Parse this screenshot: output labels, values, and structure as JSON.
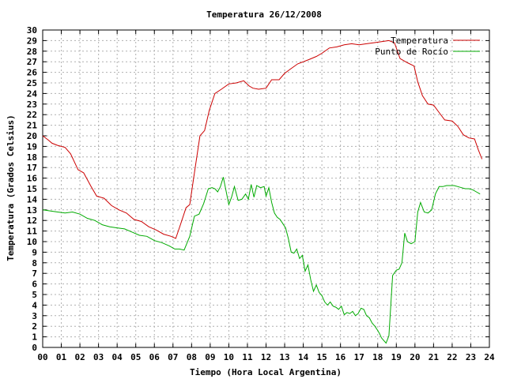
{
  "chart_data": {
    "type": "line",
    "title": "Temperatura 26/12/2008",
    "xlabel": "Tiempo (Hora Local Argentina)",
    "ylabel": "Temperatura (Grados Celsius)",
    "xlim": [
      0,
      24
    ],
    "ylim": [
      0,
      30
    ],
    "grid": true,
    "legend_position": "top-right",
    "x_ticks": [
      "00",
      "01",
      "02",
      "03",
      "04",
      "05",
      "06",
      "07",
      "08",
      "09",
      "10",
      "11",
      "12",
      "13",
      "14",
      "15",
      "16",
      "17",
      "18",
      "19",
      "20",
      "21",
      "22",
      "23",
      "24"
    ],
    "y_ticks": [
      "0",
      "1",
      "2",
      "3",
      "4",
      "5",
      "6",
      "7",
      "8",
      "9",
      "10",
      "11",
      "12",
      "13",
      "14",
      "15",
      "16",
      "17",
      "18",
      "19",
      "20",
      "21",
      "22",
      "23",
      "24",
      "25",
      "26",
      "27",
      "28",
      "29",
      "30"
    ],
    "series": [
      {
        "name": "Temperatura",
        "color": "#cc0000",
        "x": [
          0,
          0.3,
          0.5,
          0.8,
          1.2,
          1.5,
          1.9,
          2.2,
          2.6,
          2.9,
          3.3,
          3.7,
          4.1,
          4.5,
          4.9,
          5.3,
          5.7,
          6.1,
          6.5,
          6.9,
          7.15,
          7.4,
          7.7,
          7.9,
          8.15,
          8.45,
          8.7,
          8.95,
          9.25,
          9.6,
          10.0,
          10.4,
          10.8,
          11.1,
          11.3,
          11.6,
          12.0,
          12.3,
          12.7,
          13.0,
          13.3,
          13.7,
          14.0,
          14.3,
          14.7,
          15.0,
          15.4,
          15.8,
          16.2,
          16.6,
          17.0,
          17.4,
          17.8,
          18.2,
          18.6,
          18.9,
          19.2,
          19.6,
          19.95,
          20.15,
          20.4,
          20.7,
          21.0,
          21.3,
          21.6,
          22.0,
          22.3,
          22.6,
          22.9,
          23.2,
          23.4,
          23.6
        ],
        "values": [
          20.0,
          19.6,
          19.3,
          19.1,
          18.9,
          18.3,
          16.8,
          16.5,
          15.2,
          14.3,
          14.1,
          13.4,
          13.0,
          12.7,
          12.1,
          11.9,
          11.4,
          11.1,
          10.7,
          10.5,
          10.3,
          11.6,
          13.2,
          13.5,
          16.5,
          20.0,
          20.5,
          22.4,
          24.0,
          24.4,
          24.9,
          25.0,
          25.2,
          24.7,
          24.5,
          24.4,
          24.5,
          25.3,
          25.3,
          25.9,
          26.3,
          26.8,
          27.0,
          27.2,
          27.5,
          27.8,
          28.3,
          28.4,
          28.6,
          28.7,
          28.6,
          28.7,
          28.8,
          28.9,
          29.0,
          28.8,
          27.3,
          26.9,
          26.6,
          25.1,
          23.8,
          23.0,
          22.9,
          22.2,
          21.5,
          21.4,
          20.9,
          20.1,
          19.8,
          19.7,
          18.7,
          17.8
        ]
      },
      {
        "name": "Punto de Rocío",
        "color": "#00aa00",
        "x": [
          0,
          0.4,
          0.8,
          1.2,
          1.6,
          2.0,
          2.4,
          2.8,
          3.2,
          3.6,
          4.0,
          4.4,
          4.8,
          5.2,
          5.6,
          6.0,
          6.4,
          6.8,
          7.1,
          7.35,
          7.6,
          7.9,
          8.15,
          8.4,
          8.65,
          8.9,
          9.1,
          9.25,
          9.4,
          9.55,
          9.7,
          9.85,
          10.0,
          10.15,
          10.3,
          10.5,
          10.7,
          10.9,
          11.05,
          11.2,
          11.35,
          11.5,
          11.7,
          11.9,
          12.0,
          12.15,
          12.3,
          12.45,
          12.6,
          12.75,
          12.9,
          13.05,
          13.2,
          13.35,
          13.5,
          13.65,
          13.8,
          13.95,
          14.1,
          14.25,
          14.4,
          14.55,
          14.7,
          14.85,
          15.0,
          15.15,
          15.3,
          15.45,
          15.6,
          15.75,
          15.9,
          16.05,
          16.2,
          16.35,
          16.5,
          16.65,
          16.8,
          16.95,
          17.1,
          17.25,
          17.4,
          17.55,
          17.7,
          17.85,
          18.0,
          18.1,
          18.2,
          18.3,
          18.45,
          18.6,
          18.8,
          19.0,
          19.15,
          19.3,
          19.45,
          19.6,
          19.8,
          20.0,
          20.15,
          20.3,
          20.5,
          20.7,
          20.9,
          21.1,
          21.3,
          21.5,
          21.7,
          21.9,
          22.1,
          22.3,
          22.5,
          22.7,
          22.9,
          23.1,
          23.3,
          23.5
        ],
        "values": [
          13.0,
          12.9,
          12.8,
          12.7,
          12.8,
          12.6,
          12.2,
          12.0,
          11.6,
          11.4,
          11.3,
          11.2,
          10.9,
          10.6,
          10.5,
          10.1,
          9.9,
          9.6,
          9.3,
          9.3,
          9.2,
          10.5,
          12.4,
          12.6,
          13.6,
          15.0,
          15.1,
          15.0,
          14.7,
          15.2,
          16.1,
          14.8,
          13.5,
          14.2,
          15.2,
          13.9,
          14.0,
          14.5,
          14.0,
          15.4,
          14.2,
          15.3,
          15.1,
          15.2,
          14.3,
          15.1,
          13.7,
          12.7,
          12.3,
          12.1,
          11.7,
          11.3,
          10.3,
          9.0,
          8.9,
          9.3,
          8.4,
          8.7,
          7.2,
          7.8,
          6.4,
          5.3,
          5.9,
          5.2,
          4.9,
          4.3,
          4.0,
          4.3,
          3.9,
          3.8,
          3.6,
          3.9,
          3.1,
          3.3,
          3.2,
          3.4,
          3.0,
          3.2,
          3.7,
          3.6,
          3.0,
          2.8,
          2.3,
          2.0,
          1.6,
          1.3,
          0.9,
          0.7,
          0.4,
          1.1,
          6.8,
          7.3,
          7.4,
          8.0,
          10.8,
          10.0,
          9.8,
          10.0,
          12.8,
          13.7,
          12.8,
          12.7,
          13.0,
          14.5,
          15.2,
          15.2,
          15.3,
          15.3,
          15.3,
          15.2,
          15.1,
          15.0,
          15.0,
          14.9,
          14.7,
          14.5
        ]
      }
    ]
  }
}
